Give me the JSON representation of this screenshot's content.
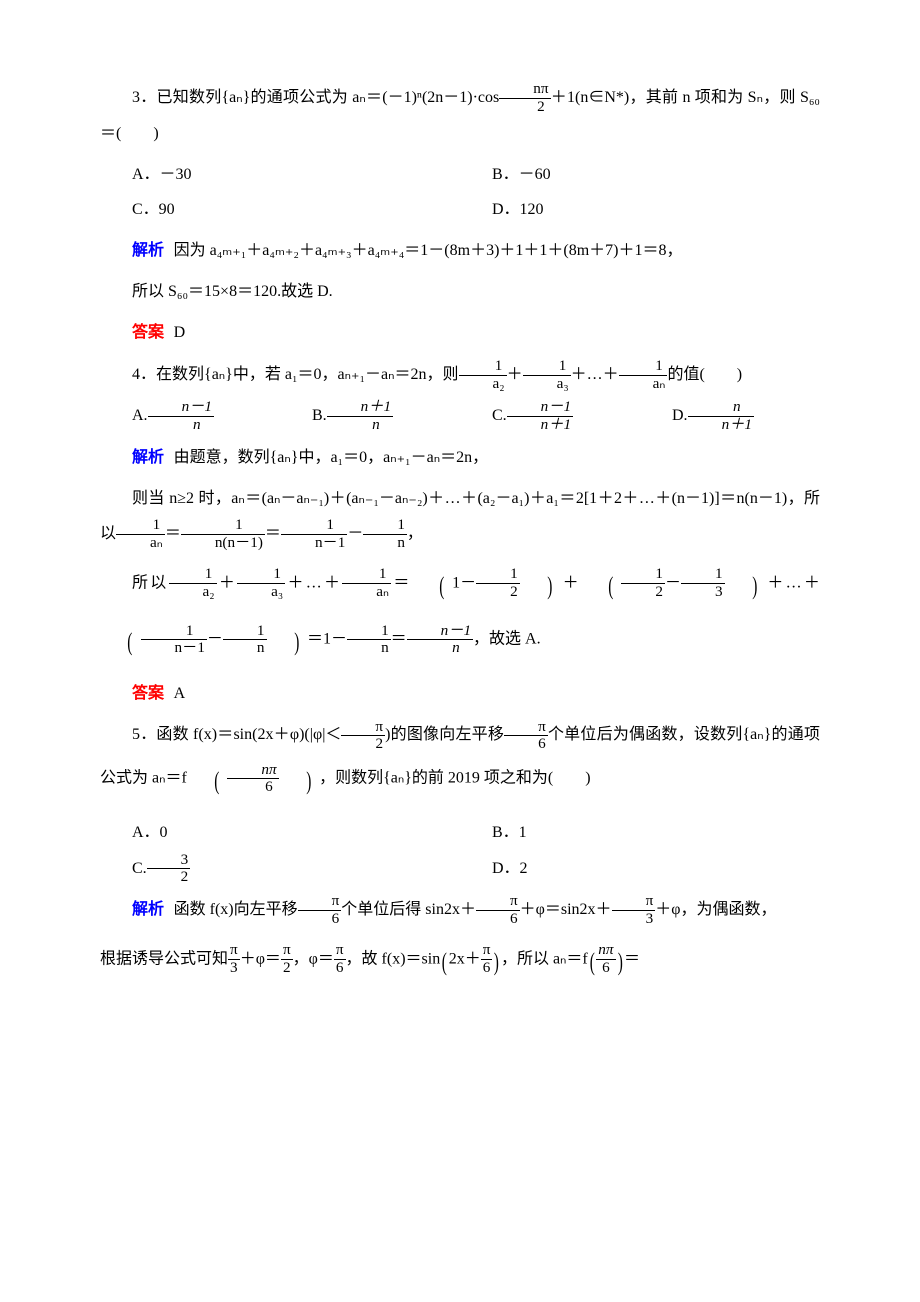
{
  "colors": {
    "text": "#000000",
    "analysis": "#0000ff",
    "answer": "#ff0000",
    "background": "#ffffff"
  },
  "typography": {
    "base_font_family": "SimSun / Times New Roman / serif",
    "base_font_size_pt": 12,
    "line_height": 2.2,
    "indent_em": 2
  },
  "labels": {
    "analysis": "解析",
    "answer": "答案"
  },
  "q3": {
    "number": "3．",
    "stem_1": "已知数列{aₙ}的通项公式为 aₙ＝(－1)ⁿ(2n－1)·cos",
    "stem_frac_num": "nπ",
    "stem_frac_den": "2",
    "stem_2": "＋1(n∈N*)，其前 n 项和为 Sₙ，则 S₆₀＝(　　)",
    "options": {
      "A": "A．－30",
      "B": "B．－60",
      "C": "C．90",
      "D": "D．120"
    },
    "analysis_1": "因为 a₄ₘ₊₁＋a₄ₘ₊₂＋a₄ₘ₊₃＋a₄ₘ₊₄＝1－(8m＋3)＋1＋1＋(8m＋7)＋1＝8，",
    "analysis_2": "所以 S₆₀＝15×8＝120.故选 D.",
    "answer": "D"
  },
  "q4": {
    "number": "4．",
    "stem_1": "在数列{aₙ}中，若 a₁＝0，aₙ₊₁－aₙ＝2n，则",
    "stem_frac1_num": "1",
    "stem_frac1_den": "a₂",
    "plus": "＋",
    "stem_frac2_num": "1",
    "stem_frac2_den": "a₃",
    "dots": "＋…＋",
    "stem_frac3_num": "1",
    "stem_frac3_den": "aₙ",
    "stem_2": "的值(　　)",
    "options": {
      "A_label": "A.",
      "A_num": "n－1",
      "A_den": "n",
      "B_label": "B.",
      "B_num": "n＋1",
      "B_den": "n",
      "C_label": "C.",
      "C_num": "n－1",
      "C_den": "n＋1",
      "D_label": "D.",
      "D_num": "n",
      "D_den": "n＋1"
    },
    "analysis_1": "由题意，数列{aₙ}中，a₁＝0，aₙ₊₁－aₙ＝2n，",
    "analysis_2a": "则当 n≥2 时，aₙ＝(aₙ－aₙ₋₁)＋(aₙ₋₁－aₙ₋₂)＋…＋(a₂－a₁)＋a₁＝2[1＋2＋…＋(n－1)]＝n(n－1)，所以",
    "analysis_2_f1_num": "1",
    "analysis_2_f1_den": "aₙ",
    "analysis_2b": "＝",
    "analysis_2_f2_num": "1",
    "analysis_2_f2_den": "n(n－1)",
    "analysis_2c": "＝",
    "analysis_2_f3_num": "1",
    "analysis_2_f3_den": "n－1",
    "analysis_2d": "－",
    "analysis_2_f4_num": "1",
    "analysis_2_f4_den": "n",
    "analysis_2e": "，",
    "analysis_3a": "所以",
    "analysis_3_f1_num": "1",
    "analysis_3_f1_den": "a₂",
    "analysis_3_f2_num": "1",
    "analysis_3_f2_den": "a₃",
    "analysis_3_dots": "＋…＋",
    "analysis_3_f3_num": "1",
    "analysis_3_f3_den": "aₙ",
    "analysis_3_eq": "＝",
    "analysis_3_t1a": "1－",
    "analysis_3_t1b_num": "1",
    "analysis_3_t1b_den": "2",
    "analysis_3_t2a_num": "1",
    "analysis_3_t2a_den": "2",
    "analysis_3_t2b": "－",
    "analysis_3_t2c_num": "1",
    "analysis_3_t2c_den": "3",
    "analysis_3_mid": "＋…＋",
    "analysis_3_t3a_num": "1",
    "analysis_3_t3a_den": "n－1",
    "analysis_3_t3b": "－",
    "analysis_3_t3c_num": "1",
    "analysis_3_t3c_den": "n",
    "analysis_3_endA": "＝1－",
    "analysis_3_endF_num": "1",
    "analysis_3_endF_den": "n",
    "analysis_3_endB": "＝",
    "analysis_3_endG_num": "n－1",
    "analysis_3_endG_den": "n",
    "analysis_3_endC": "，故选 A.",
    "answer": "A"
  },
  "q5": {
    "number": "5．",
    "stem_1": "函数 f(x)＝sin(2x＋φ)(|φ|＜",
    "stem_f1_num": "π",
    "stem_f1_den": "2",
    "stem_2": ")的图像向左平移",
    "stem_f2_num": "π",
    "stem_f2_den": "6",
    "stem_3": "个单位后为偶函数，设数列{aₙ}的通项公式为 aₙ＝f",
    "stem_fa_num": "nπ",
    "stem_fa_den": "6",
    "stem_4": "，则数列{aₙ}的前 2019 项之和为(　　)",
    "options": {
      "A": "A．0",
      "B": "B．1",
      "C_label": "C.",
      "C_num": "3",
      "C_den": "2",
      "D": "D．2"
    },
    "analysis_1a": "函数 f(x)向左平移",
    "analysis_1_f1_num": "π",
    "analysis_1_f1_den": "6",
    "analysis_1b": "个单位后得 sin2x＋",
    "analysis_1_f2_num": "π",
    "analysis_1_f2_den": "6",
    "analysis_1c": "＋φ＝sin2x＋",
    "analysis_1_f3_num": "π",
    "analysis_1_f3_den": "3",
    "analysis_1d": "＋φ，为偶函数，",
    "analysis_2a": "根据诱导公式可知",
    "analysis_2_f1_num": "π",
    "analysis_2_f1_den": "3",
    "analysis_2b": "＋φ＝",
    "analysis_2_f2_num": "π",
    "analysis_2_f2_den": "2",
    "analysis_2c": "，φ＝",
    "analysis_2_f3_num": "π",
    "analysis_2_f3_den": "6",
    "analysis_2d": "，故 f(x)＝sin",
    "analysis_2_f4a": "2x＋",
    "analysis_2_f4_num": "π",
    "analysis_2_f4_den": "6",
    "analysis_2e": "，所以 aₙ＝f",
    "analysis_2_f5_num": "nπ",
    "analysis_2_f5_den": "6",
    "analysis_2f": "＝"
  }
}
